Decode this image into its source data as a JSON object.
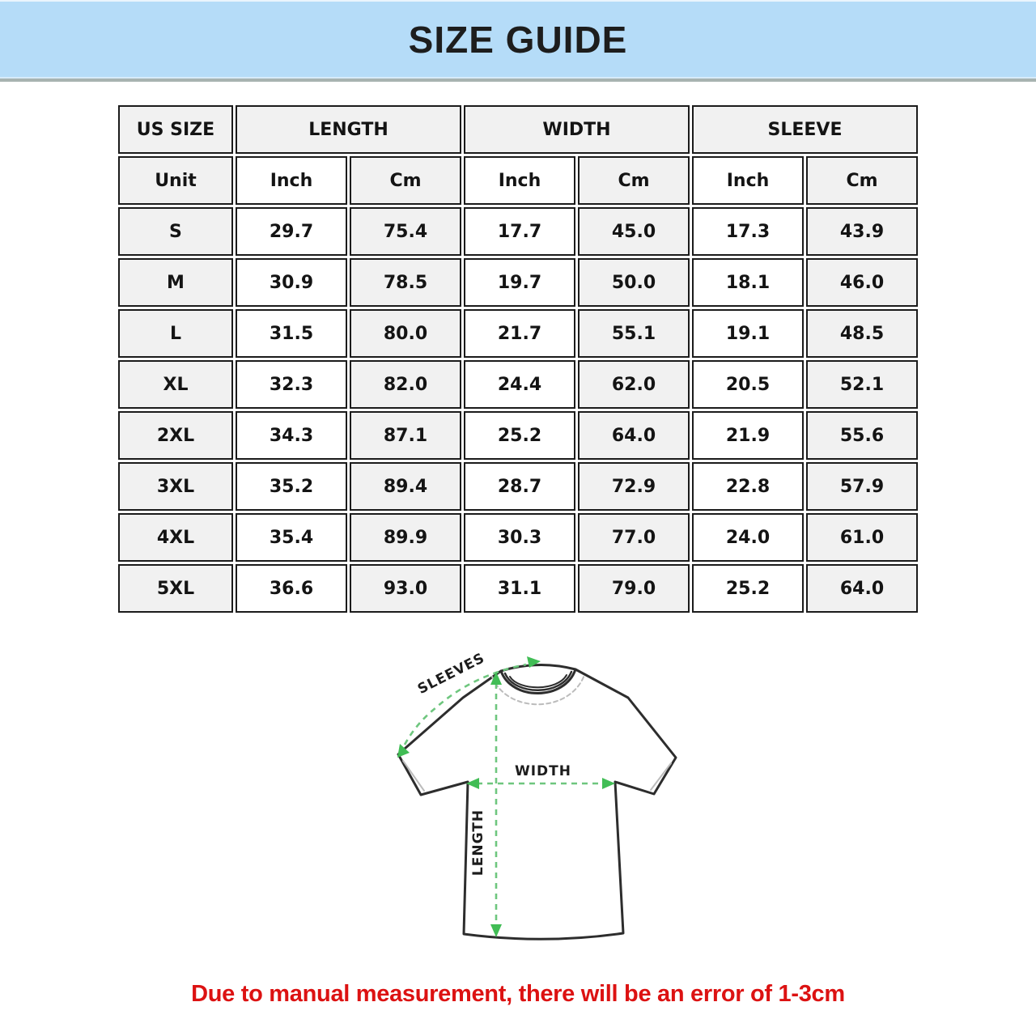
{
  "banner": {
    "title": "SIZE GUIDE",
    "background": "#b5dcf8"
  },
  "table": {
    "groups": [
      {
        "label": "US SIZE",
        "span": 1
      },
      {
        "label": "LENGTH",
        "span": 2
      },
      {
        "label": "WIDTH",
        "span": 2
      },
      {
        "label": "SLEEVE",
        "span": 2
      }
    ],
    "unit_row": [
      "Unit",
      "Inch",
      "Cm",
      "Inch",
      "Cm",
      "Inch",
      "Cm"
    ],
    "rows": [
      {
        "size": "S",
        "values": [
          "29.7",
          "75.4",
          "17.7",
          "45.0",
          "17.3",
          "43.9"
        ]
      },
      {
        "size": "M",
        "values": [
          "30.9",
          "78.5",
          "19.7",
          "50.0",
          "18.1",
          "46.0"
        ]
      },
      {
        "size": "L",
        "values": [
          "31.5",
          "80.0",
          "21.7",
          "55.1",
          "19.1",
          "48.5"
        ]
      },
      {
        "size": "XL",
        "values": [
          "32.3",
          "82.0",
          "24.4",
          "62.0",
          "20.5",
          "52.1"
        ]
      },
      {
        "size": "2XL",
        "values": [
          "34.3",
          "87.1",
          "25.2",
          "64.0",
          "21.9",
          "55.6"
        ]
      },
      {
        "size": "3XL",
        "values": [
          "35.2",
          "89.4",
          "28.7",
          "72.9",
          "22.8",
          "57.9"
        ]
      },
      {
        "size": "4XL",
        "values": [
          "35.4",
          "89.9",
          "30.3",
          "77.0",
          "24.0",
          "61.0"
        ]
      },
      {
        "size": "5XL",
        "values": [
          "36.6",
          "93.0",
          "31.1",
          "79.0",
          "25.2",
          "64.0"
        ]
      }
    ]
  },
  "diagram": {
    "labels": {
      "sleeves": "SLEEVES",
      "width": "WIDTH",
      "length": "LENGTH"
    },
    "accent_color": "#41bd55"
  },
  "footer": {
    "note": "Due to manual measurement, there will be an error of 1-3cm",
    "color": "#dc1212"
  }
}
